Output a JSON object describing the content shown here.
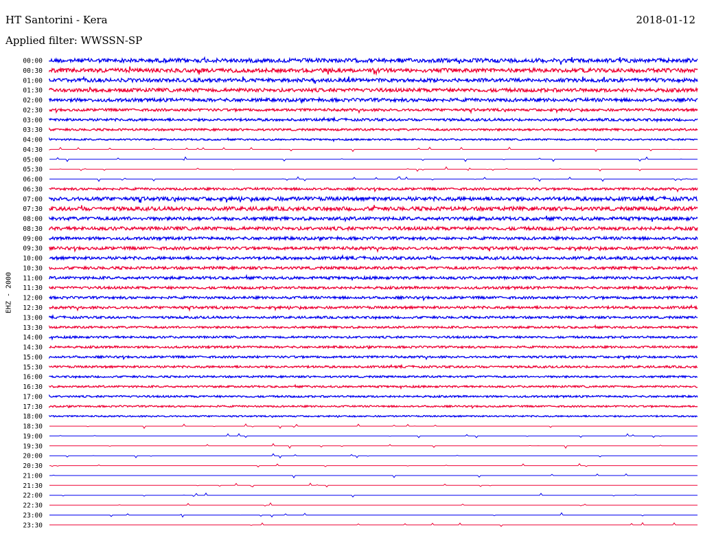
{
  "header": {
    "station": "HT Santorini - Kera",
    "date": "2018-01-12",
    "filter": "Applied filter: WWSSN-SP"
  },
  "chart_data": {
    "type": "line",
    "title": "HT Santorini - Kera",
    "subtitle": "Applied filter: WWSSN-SP",
    "ylabel": "EHZ - 2000",
    "tick_labels": [
      "00:00",
      "00:30",
      "01:00",
      "01:30",
      "02:00",
      "02:30",
      "03:00",
      "03:30",
      "04:00",
      "04:30",
      "05:00",
      "05:30",
      "06:00",
      "06:30",
      "07:00",
      "07:30",
      "08:00",
      "08:30",
      "09:00",
      "09:30",
      "10:00",
      "10:30",
      "11:00",
      "11:30",
      "12:00",
      "12:30",
      "13:00",
      "13:30",
      "14:00",
      "14:30",
      "15:00",
      "15:30",
      "16:00",
      "16:30",
      "17:00",
      "17:30",
      "18:00",
      "18:30",
      "19:00",
      "19:30",
      "20:00",
      "20:30",
      "21:00",
      "21:30",
      "22:00",
      "22:30",
      "23:00",
      "23:30"
    ],
    "colors": {
      "even": "#0000ee",
      "odd": "#ee0033"
    },
    "activity": [
      0.95,
      0.95,
      0.85,
      0.85,
      0.8,
      0.6,
      0.6,
      0.5,
      0.4,
      0.15,
      0.15,
      0.15,
      0.1,
      0.55,
      0.9,
      0.9,
      0.8,
      0.8,
      0.7,
      0.7,
      0.7,
      0.65,
      0.65,
      0.6,
      0.6,
      0.6,
      0.55,
      0.5,
      0.5,
      0.5,
      0.5,
      0.5,
      0.45,
      0.45,
      0.45,
      0.4,
      0.35,
      0.02,
      0.02,
      0.02,
      0.02,
      0.02,
      0.05,
      0.05,
      0.05,
      0.02,
      0.02,
      0.02
    ],
    "grid": false
  }
}
